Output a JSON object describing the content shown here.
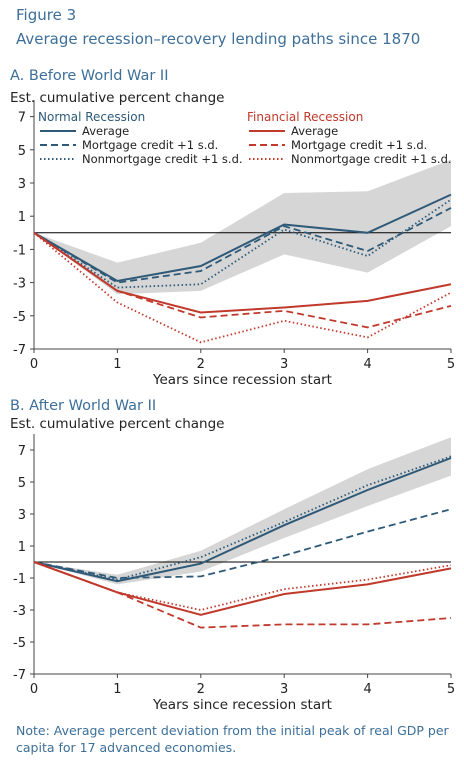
{
  "figure_label": "Figure 3",
  "figure_title": "Average recession–recovery lending paths since 1870",
  "note": "Note: Average percent deviation from the initial peak of real GDP per capita for 17 advanced economies.",
  "colors": {
    "blue": "#2e5a78",
    "red": "#c0392b",
    "band": "#d6d6d6",
    "title": "#3d6f99"
  },
  "chart_data": [
    {
      "type": "line",
      "title": "A.   Before World War II",
      "ylabel": "Est. cumulative percent change",
      "xlabel": "Years since recession start",
      "x": [
        0,
        1,
        2,
        3,
        4,
        5
      ],
      "xlim": [
        0,
        5
      ],
      "ylim": [
        -7,
        8
      ],
      "yticks": [
        7,
        5,
        3,
        1,
        -1,
        -3,
        -5,
        -7
      ],
      "legend_groups": [
        "Normal Recession",
        "Financial Recession"
      ],
      "band": {
        "upper": [
          0,
          -1.8,
          -0.6,
          2.4,
          2.5,
          4.4
        ],
        "lower": [
          0,
          -3.7,
          -3.5,
          -1.3,
          -2.4,
          0.4
        ]
      },
      "series": [
        {
          "name": "Average",
          "group": "Normal Recession",
          "style": "solid",
          "color": "#2e5a78",
          "values": [
            0,
            -2.9,
            -2.0,
            0.5,
            0.0,
            2.3
          ]
        },
        {
          "name": "Mortgage credit +1 s.d.",
          "group": "Normal Recession",
          "style": "dashed",
          "color": "#2e5a78",
          "values": [
            0,
            -3.0,
            -2.3,
            0.4,
            -1.1,
            1.5
          ]
        },
        {
          "name": "Nonmortgage credit +1 s.d.",
          "group": "Normal Recession",
          "style": "dotted",
          "color": "#2e5a78",
          "values": [
            0,
            -3.3,
            -3.1,
            0.2,
            -1.4,
            2.0
          ]
        },
        {
          "name": "Average",
          "group": "Financial Recession",
          "style": "solid",
          "color": "#c0392b",
          "values": [
            0,
            -3.5,
            -4.8,
            -4.5,
            -4.1,
            -3.1
          ]
        },
        {
          "name": "Mortgage credit +1 s.d.",
          "group": "Financial Recession",
          "style": "dashed",
          "color": "#c0392b",
          "values": [
            0,
            -3.5,
            -5.1,
            -4.7,
            -5.7,
            -4.4
          ]
        },
        {
          "name": "Nonmortgage credit +1 s.d.",
          "group": "Financial Recession",
          "style": "dotted",
          "color": "#c0392b",
          "values": [
            0,
            -4.2,
            -6.6,
            -5.3,
            -6.3,
            -3.6
          ]
        }
      ]
    },
    {
      "type": "line",
      "title": "B.   After World War II",
      "ylabel": "Est. cumulative percent change",
      "xlabel": "Years since recession start",
      "x": [
        0,
        1,
        2,
        3,
        4,
        5
      ],
      "xlim": [
        0,
        5
      ],
      "ylim": [
        -7,
        8
      ],
      "yticks": [
        7,
        5,
        3,
        1,
        -1,
        -3,
        -5,
        -7
      ],
      "band": {
        "upper": [
          0,
          -0.8,
          0.7,
          3.3,
          5.8,
          7.8
        ],
        "lower": [
          0,
          -1.4,
          -0.6,
          1.5,
          3.5,
          5.4
        ]
      },
      "series": [
        {
          "name": "Average",
          "group": "Normal Recession",
          "style": "solid",
          "color": "#2e5a78",
          "values": [
            0,
            -1.2,
            -0.1,
            2.3,
            4.5,
            6.5
          ]
        },
        {
          "name": "Mortgage credit +1 s.d.",
          "group": "Normal Recession",
          "style": "dashed",
          "color": "#2e5a78",
          "values": [
            0,
            -1.0,
            -0.9,
            0.4,
            1.9,
            3.3
          ]
        },
        {
          "name": "Nonmortgage credit +1 s.d.",
          "group": "Normal Recession",
          "style": "dotted",
          "color": "#2e5a78",
          "values": [
            0,
            -1.1,
            0.3,
            2.5,
            4.8,
            6.6
          ]
        },
        {
          "name": "Average",
          "group": "Financial Recession",
          "style": "solid",
          "color": "#c0392b",
          "values": [
            0,
            -1.9,
            -3.3,
            -2.0,
            -1.4,
            -0.4
          ]
        },
        {
          "name": "Mortgage credit +1 s.d.",
          "group": "Financial Recession",
          "style": "dashed",
          "color": "#c0392b",
          "values": [
            0,
            -1.9,
            -4.1,
            -3.9,
            -3.9,
            -3.5
          ]
        },
        {
          "name": "Nonmortgage credit +1 s.d.",
          "group": "Financial Recession",
          "style": "dotted",
          "color": "#c0392b",
          "values": [
            0,
            -1.9,
            -3.0,
            -1.7,
            -1.1,
            -0.2
          ]
        }
      ]
    }
  ]
}
